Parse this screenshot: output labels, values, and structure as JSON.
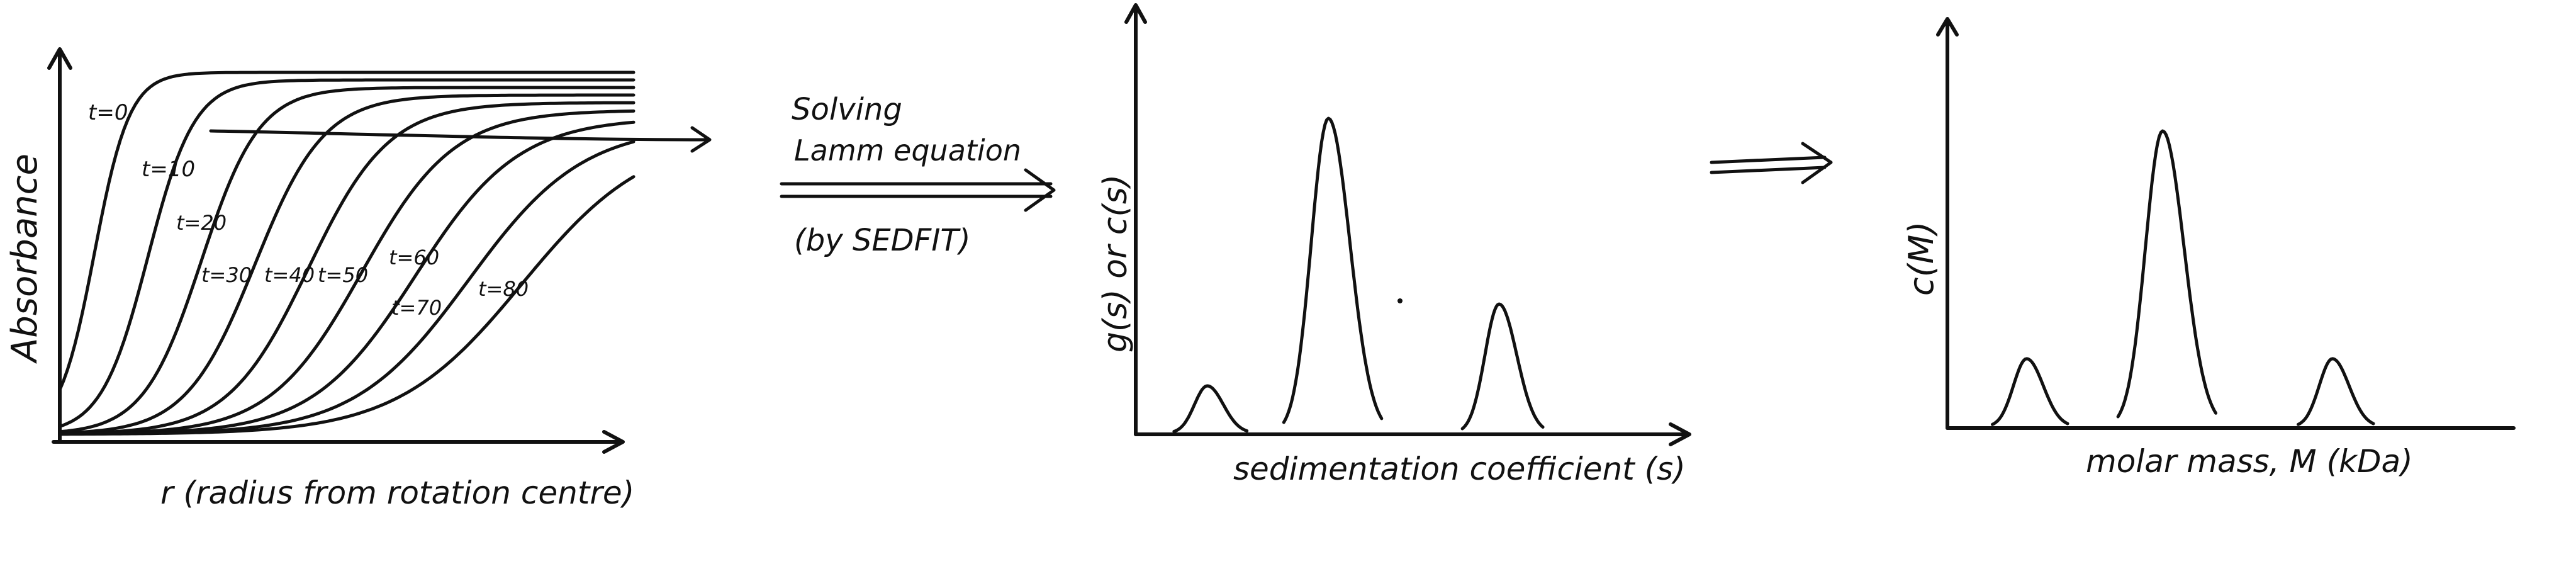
{
  "panel1": {
    "ylabel": "Absorbance",
    "xlabel": "r (radius from rotation centre)",
    "curve_labels": [
      "t=0",
      "t=10",
      "t=20",
      "t=30",
      "t=40",
      "t=50",
      "t=60",
      "t=70",
      "t=80"
    ]
  },
  "step1": {
    "line1": "Solving",
    "line2": "Lamm equation",
    "line3": "(by SEDFIT)"
  },
  "panel2": {
    "ylabel": "g(s) or c(s)",
    "xlabel": "sedimentation coefficient (s)"
  },
  "panel3": {
    "ylabel": "c(M)",
    "xlabel": "molar mass, M (kDa)"
  },
  "chart_data": [
    {
      "type": "line",
      "xlabel": "r (radius from rotation centre)",
      "ylabel": "Absorbance",
      "series": [
        {
          "name": "t=0"
        },
        {
          "name": "t=10"
        },
        {
          "name": "t=20"
        },
        {
          "name": "t=30"
        },
        {
          "name": "t=40"
        },
        {
          "name": "t=50"
        },
        {
          "name": "t=60"
        },
        {
          "name": "t=70"
        },
        {
          "name": "t=80"
        }
      ]
    },
    {
      "type": "line",
      "xlabel": "sedimentation coefficient (s)",
      "ylabel": "g(s) or c(s)",
      "peaks": [
        {
          "position": 0.13,
          "relative_height": 0.15
        },
        {
          "position": 0.35,
          "relative_height": 1.0
        },
        {
          "position": 0.66,
          "relative_height": 0.41
        }
      ]
    },
    {
      "type": "line",
      "xlabel": "molar mass, M (kDa)",
      "ylabel": "c(M)",
      "peaks": [
        {
          "position": 0.14,
          "relative_height": 0.23
        },
        {
          "position": 0.38,
          "relative_height": 1.0
        },
        {
          "position": 0.68,
          "relative_height": 0.23
        }
      ]
    }
  ]
}
